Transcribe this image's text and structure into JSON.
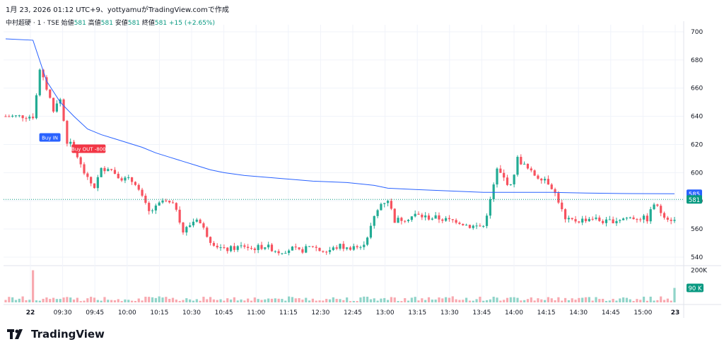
{
  "caption": "1月 23, 2026 01:12 UTC+9、yottyamuがTradingView.comで作成",
  "legend": {
    "symbol": "中村超硬 · 1 · TSE",
    "open_label": "始値",
    "open": "581",
    "high_label": "高値",
    "high": "581",
    "low_label": "安値",
    "low": "581",
    "close_label": "終値",
    "close": "581",
    "change": "+15 (+2.65%)"
  },
  "brand": {
    "name": "TradingView",
    "logo_icon": "tradingview-logo-icon"
  },
  "colors": {
    "up": "#089981",
    "down": "#f23645",
    "candle_up": "#22ab94",
    "candle_down": "#f7525f",
    "vwap": "#2962ff",
    "vol_up": "#90d4c9",
    "vol_down": "#f8a9b0",
    "grid": "#f0f3fa",
    "axis_text": "#131722",
    "buy_in": "#2962ff",
    "buy_out": "#f23645"
  },
  "chart_data": {
    "type": "candlestick",
    "interval": "1 minute",
    "x_ticks": [
      "22",
      "09:30",
      "09:45",
      "10:00",
      "10:15",
      "10:30",
      "10:45",
      "11:00",
      "11:15",
      "12:30",
      "12:45",
      "13:00",
      "13:15",
      "13:30",
      "13:45",
      "14:00",
      "14:15",
      "14:30",
      "14:45",
      "15:00",
      "23"
    ],
    "y_ticks": [
      540,
      560,
      580,
      600,
      620,
      640,
      660,
      680,
      700
    ],
    "ylim": [
      535,
      705
    ],
    "volume_ticks": [
      "200K"
    ],
    "price_path": [
      [
        0,
        640
      ],
      [
        8,
        640
      ],
      [
        10,
        672
      ],
      [
        12,
        660
      ],
      [
        14,
        645
      ],
      [
        16,
        652
      ],
      [
        18,
        622
      ],
      [
        20,
        618
      ],
      [
        22,
        605
      ],
      [
        24,
        595
      ],
      [
        26,
        590
      ],
      [
        28,
        602
      ],
      [
        30,
        604
      ],
      [
        32,
        600
      ],
      [
        34,
        596
      ],
      [
        36,
        595
      ],
      [
        38,
        593
      ],
      [
        40,
        582
      ],
      [
        42,
        572
      ],
      [
        44,
        575
      ],
      [
        46,
        580
      ],
      [
        48,
        578
      ],
      [
        50,
        575
      ],
      [
        52,
        558
      ],
      [
        54,
        563
      ],
      [
        56,
        568
      ],
      [
        58,
        560
      ],
      [
        60,
        552
      ],
      [
        62,
        548
      ],
      [
        64,
        545
      ],
      [
        66,
        546
      ],
      [
        68,
        547
      ],
      [
        70,
        548
      ],
      [
        72,
        546
      ],
      [
        74,
        547
      ],
      [
        76,
        548
      ],
      [
        78,
        546
      ],
      [
        80,
        544
      ],
      [
        82,
        545
      ],
      [
        84,
        546
      ],
      [
        86,
        544
      ],
      [
        88,
        546
      ],
      [
        90,
        548
      ],
      [
        92,
        545
      ],
      [
        94,
        544
      ],
      [
        96,
        546
      ],
      [
        98,
        548
      ],
      [
        100,
        546
      ],
      [
        102,
        548
      ],
      [
        104,
        546
      ],
      [
        106,
        555
      ],
      [
        108,
        568
      ],
      [
        110,
        578
      ],
      [
        112,
        581
      ],
      [
        114,
        566
      ],
      [
        116,
        567
      ],
      [
        118,
        568
      ],
      [
        120,
        570
      ],
      [
        122,
        569
      ],
      [
        124,
        568
      ],
      [
        126,
        568
      ],
      [
        128,
        567
      ],
      [
        130,
        566
      ],
      [
        132,
        566
      ],
      [
        134,
        564
      ],
      [
        136,
        562
      ],
      [
        138,
        562
      ],
      [
        140,
        562
      ],
      [
        142,
        580
      ],
      [
        144,
        602
      ],
      [
        146,
        596
      ],
      [
        148,
        590
      ],
      [
        150,
        610
      ],
      [
        152,
        605
      ],
      [
        154,
        600
      ],
      [
        156,
        597
      ],
      [
        158,
        596
      ],
      [
        160,
        590
      ],
      [
        162,
        580
      ],
      [
        164,
        566
      ],
      [
        166,
        566
      ],
      [
        168,
        566
      ],
      [
        170,
        567
      ],
      [
        172,
        568
      ],
      [
        174,
        566
      ],
      [
        176,
        565
      ],
      [
        178,
        566
      ],
      [
        180,
        567
      ],
      [
        182,
        568
      ],
      [
        184,
        568
      ],
      [
        186,
        568
      ],
      [
        188,
        567
      ],
      [
        190,
        578
      ],
      [
        192,
        572
      ],
      [
        194,
        568
      ],
      [
        196,
        566
      ]
    ],
    "vwap": [
      [
        0,
        695
      ],
      [
        8,
        694
      ],
      [
        12,
        665
      ],
      [
        16,
        650
      ],
      [
        20,
        640
      ],
      [
        24,
        631
      ],
      [
        28,
        627
      ],
      [
        32,
        624
      ],
      [
        36,
        621
      ],
      [
        40,
        618
      ],
      [
        44,
        614
      ],
      [
        48,
        611
      ],
      [
        52,
        608
      ],
      [
        56,
        605
      ],
      [
        60,
        602
      ],
      [
        64,
        600
      ],
      [
        70,
        598
      ],
      [
        80,
        596
      ],
      [
        90,
        594
      ],
      [
        100,
        593
      ],
      [
        108,
        591
      ],
      [
        112,
        589
      ],
      [
        120,
        588
      ],
      [
        130,
        587
      ],
      [
        140,
        586
      ],
      [
        150,
        586
      ],
      [
        160,
        586
      ],
      [
        170,
        585.5
      ],
      [
        180,
        585.2
      ],
      [
        196,
        585
      ]
    ],
    "volume_spikes": [
      [
        8,
        200000
      ],
      [
        196,
        90000
      ]
    ],
    "last_price": 581,
    "vwap_last": 585,
    "last_volume": "90 K",
    "annotations": [
      {
        "text": "Buy IN",
        "time_index": 14,
        "price": 625
      },
      {
        "text": "Buy OUT -800",
        "time_index": 21,
        "price": 617
      }
    ]
  }
}
